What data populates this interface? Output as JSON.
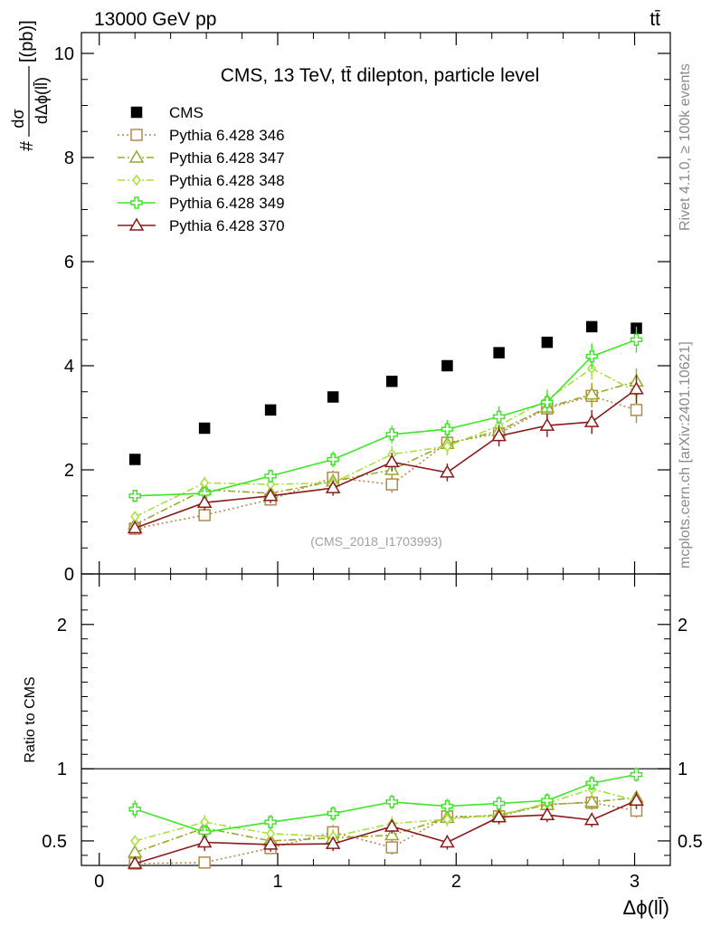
{
  "header": {
    "left": "13000 GeV pp",
    "right": "tt̄"
  },
  "side_labels": {
    "rivet": "Rivet 4.1.0, ≥ 100k events",
    "mcplots": "mcplots.cern.ch [arXiv:2401.10621]"
  },
  "colors": {
    "cms": "#000000",
    "s346": "#b5894a",
    "s347": "#9aa82c",
    "s348": "#a6e13c",
    "s349": "#3ee626",
    "s370": "#8b1a1a"
  },
  "chart_data": [
    {
      "type": "scatter",
      "title": "CMS, 13 TeV, tt̄ dilepton, particle level",
      "watermark": "(CMS_2018_I1703993)",
      "ylabel_num": "dσ",
      "ylabel_den": "dΔϕ(ll̄)",
      "ylabel_prefix": "#",
      "ylabel_unit": "[(pb)]",
      "xlim": [
        -0.1,
        3.2
      ],
      "ylim": [
        0,
        10.4
      ],
      "y_ticks": [
        0,
        2,
        4,
        6,
        8,
        10
      ],
      "y_tick_labels": [
        "0",
        "2",
        "4",
        "6",
        "8",
        "10"
      ],
      "x": [
        0.2,
        0.59,
        0.96,
        1.31,
        1.64,
        1.95,
        2.24,
        2.51,
        2.76,
        3.01
      ],
      "series": [
        {
          "name": "CMS",
          "key": "cms",
          "values": [
            2.2,
            2.8,
            3.15,
            3.4,
            3.7,
            4.0,
            4.25,
            4.45,
            4.75,
            4.72
          ],
          "errors": [
            0,
            0,
            0,
            0,
            0,
            0,
            0,
            0,
            0,
            0
          ],
          "marker": "square-filled",
          "line": "none"
        },
        {
          "name": "Pythia 6.428 346",
          "key": "s346",
          "values": [
            0.87,
            1.13,
            1.43,
            1.85,
            1.72,
            2.52,
            2.7,
            3.18,
            3.42,
            3.15
          ],
          "errors": [
            0.1,
            0.1,
            0.12,
            0.14,
            0.16,
            0.17,
            0.18,
            0.2,
            0.22,
            0.25
          ],
          "marker": "square-open",
          "line": "dotted"
        },
        {
          "name": "Pythia 6.428 347",
          "key": "s347",
          "values": [
            0.95,
            1.62,
            1.55,
            1.78,
            2.0,
            2.5,
            2.75,
            3.2,
            3.45,
            3.7
          ],
          "errors": [
            0.1,
            0.12,
            0.12,
            0.14,
            0.15,
            0.17,
            0.18,
            0.2,
            0.22,
            0.25
          ],
          "marker": "triangle-open",
          "line": "dash-dot"
        },
        {
          "name": "Pythia 6.428 348",
          "key": "s348",
          "values": [
            1.1,
            1.75,
            1.72,
            1.75,
            2.3,
            2.45,
            2.85,
            3.35,
            3.95,
            3.5
          ],
          "errors": [
            0.1,
            0.12,
            0.13,
            0.14,
            0.16,
            0.17,
            0.18,
            0.2,
            0.22,
            0.25
          ],
          "marker": "diamond-open",
          "line": "dash-dot"
        },
        {
          "name": "Pythia 6.428 349",
          "key": "s349",
          "values": [
            1.5,
            1.55,
            1.88,
            2.2,
            2.68,
            2.78,
            3.02,
            3.3,
            4.18,
            4.5
          ],
          "errors": [
            0.1,
            0.12,
            0.13,
            0.15,
            0.17,
            0.18,
            0.2,
            0.22,
            0.25,
            0.25
          ],
          "marker": "cross-open",
          "line": "solid"
        },
        {
          "name": "Pythia 6.428 370",
          "key": "s370",
          "values": [
            0.88,
            1.37,
            1.5,
            1.65,
            2.15,
            1.95,
            2.65,
            2.85,
            2.92,
            3.55
          ],
          "errors": [
            0.1,
            0.15,
            0.14,
            0.15,
            0.18,
            0.17,
            0.2,
            0.22,
            0.23,
            0.28
          ],
          "marker": "triangle-open",
          "line": "solid"
        }
      ]
    },
    {
      "type": "scatter",
      "ylabel": "Ratio to CMS",
      "xlabel": "Δϕ(ll̄)",
      "xlim": [
        -0.1,
        3.2
      ],
      "ylim": [
        0.33,
        2.35
      ],
      "y_ticks": [
        0.5,
        1,
        2
      ],
      "y_tick_labels": [
        "0.5",
        "1",
        "2"
      ],
      "x_ticks": [
        0,
        1,
        2,
        3
      ],
      "x_tick_labels": [
        "0",
        "1",
        "2",
        "3"
      ],
      "reference": 1,
      "x": [
        0.2,
        0.59,
        0.96,
        1.31,
        1.64,
        1.95,
        2.24,
        2.51,
        2.76,
        3.01
      ],
      "series": [
        {
          "name": "Pythia 6.428 346",
          "key": "s346",
          "values": [
            0.33,
            0.35,
            0.45,
            0.56,
            0.455,
            0.67,
            0.67,
            0.755,
            0.765,
            0.71
          ],
          "errors": [
            0.04,
            0.04,
            0.04,
            0.05,
            0.05,
            0.05,
            0.05,
            0.05,
            0.05,
            0.05
          ],
          "marker": "square-open",
          "line": "dotted"
        },
        {
          "name": "Pythia 6.428 347",
          "key": "s347",
          "values": [
            0.42,
            0.59,
            0.5,
            0.52,
            0.54,
            0.66,
            0.68,
            0.75,
            0.77,
            0.8
          ],
          "errors": [
            0.04,
            0.05,
            0.04,
            0.05,
            0.05,
            0.05,
            0.05,
            0.05,
            0.05,
            0.05
          ],
          "marker": "triangle-open",
          "line": "dash-dot"
        },
        {
          "name": "Pythia 6.428 348",
          "key": "s348",
          "values": [
            0.5,
            0.63,
            0.55,
            0.53,
            0.62,
            0.65,
            0.68,
            0.76,
            0.86,
            0.78
          ],
          "errors": [
            0.04,
            0.05,
            0.04,
            0.05,
            0.05,
            0.05,
            0.05,
            0.05,
            0.05,
            0.05
          ],
          "marker": "diamond-open",
          "line": "dash-dot"
        },
        {
          "name": "Pythia 6.428 349",
          "key": "s349",
          "values": [
            0.72,
            0.56,
            0.63,
            0.69,
            0.77,
            0.74,
            0.76,
            0.78,
            0.9,
            0.96
          ],
          "errors": [
            0.06,
            0.05,
            0.05,
            0.05,
            0.05,
            0.05,
            0.05,
            0.05,
            0.05,
            0.05
          ],
          "marker": "cross-open",
          "line": "solid"
        },
        {
          "name": "Pythia 6.428 370",
          "key": "s370",
          "values": [
            0.33,
            0.49,
            0.475,
            0.48,
            0.6,
            0.49,
            0.665,
            0.68,
            0.645,
            0.78
          ],
          "errors": [
            0.04,
            0.06,
            0.05,
            0.05,
            0.05,
            0.05,
            0.05,
            0.05,
            0.05,
            0.06
          ],
          "marker": "triangle-open",
          "line": "solid"
        }
      ]
    }
  ]
}
